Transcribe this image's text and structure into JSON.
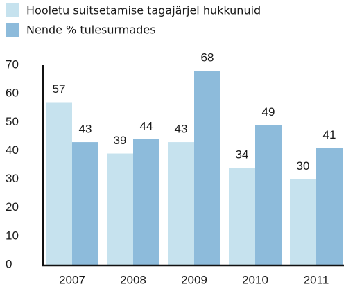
{
  "chart_data": {
    "type": "bar",
    "categories": [
      "2007",
      "2008",
      "2009",
      "2010",
      "2011"
    ],
    "series": [
      {
        "name": "Hooletu suitsetamise tagajärjel hukkunuid",
        "color": "#c6e2ee",
        "values": [
          57,
          39,
          43,
          34,
          30
        ]
      },
      {
        "name": "Nende % tulesurmades",
        "color": "#8dbbdb",
        "values": [
          43,
          44,
          68,
          49,
          41
        ]
      }
    ],
    "ylim": [
      0,
      70
    ],
    "yticks": [
      0,
      10,
      20,
      30,
      40,
      50,
      60,
      70
    ],
    "grid": false,
    "legend": "top-left",
    "data_labels": true
  }
}
